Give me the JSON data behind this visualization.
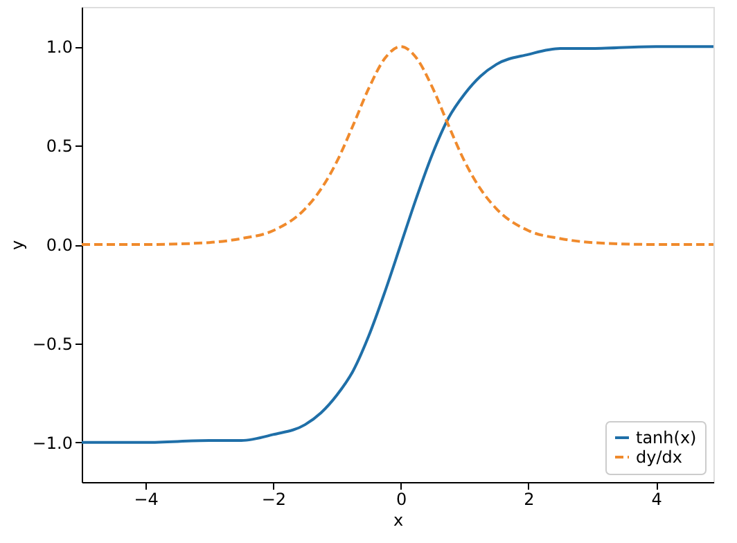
{
  "chart_data": {
    "type": "line",
    "xlabel": "x",
    "ylabel": "y",
    "x": [
      -5,
      -4,
      -3,
      -2.5,
      -2,
      -1.5,
      -1.25,
      -1,
      -0.75,
      -0.5,
      -0.25,
      0,
      0.25,
      0.5,
      0.75,
      1,
      1.25,
      1.5,
      2,
      2.5,
      3,
      4,
      4.9
    ],
    "series": [
      {
        "name": "tanh(x)",
        "color": "#1f6fa8",
        "line_style": "solid",
        "values": [
          -1.0,
          -1.0,
          -0.99,
          -0.99,
          -0.96,
          -0.91,
          -0.85,
          -0.76,
          -0.64,
          -0.46,
          -0.24,
          0.0,
          0.24,
          0.46,
          0.64,
          0.76,
          0.85,
          0.91,
          0.96,
          0.99,
          0.99,
          1.0,
          1.0
        ]
      },
      {
        "name": "dy/dx",
        "color": "#f08a2c",
        "line_style": "dashed",
        "values": [
          0.0,
          0.0,
          0.01,
          0.03,
          0.07,
          0.18,
          0.28,
          0.42,
          0.6,
          0.79,
          0.94,
          1.0,
          0.94,
          0.79,
          0.6,
          0.42,
          0.28,
          0.18,
          0.07,
          0.03,
          0.01,
          0.0,
          0.0
        ]
      }
    ],
    "xlim": [
      -5,
      4.9
    ],
    "xticks": [
      -4,
      -2,
      0,
      2,
      4
    ],
    "ylim": [
      -1.2,
      1.2
    ],
    "yticks": [
      {
        "value": -1,
        "label": "−1.0"
      },
      {
        "value": -0.5,
        "label": "−0.5"
      },
      {
        "value": 0,
        "label": "0.0"
      },
      {
        "value": 0.5,
        "label": "0.5"
      },
      {
        "value": 1,
        "label": "1.0"
      }
    ],
    "grid": false,
    "legend": "bottom right"
  }
}
